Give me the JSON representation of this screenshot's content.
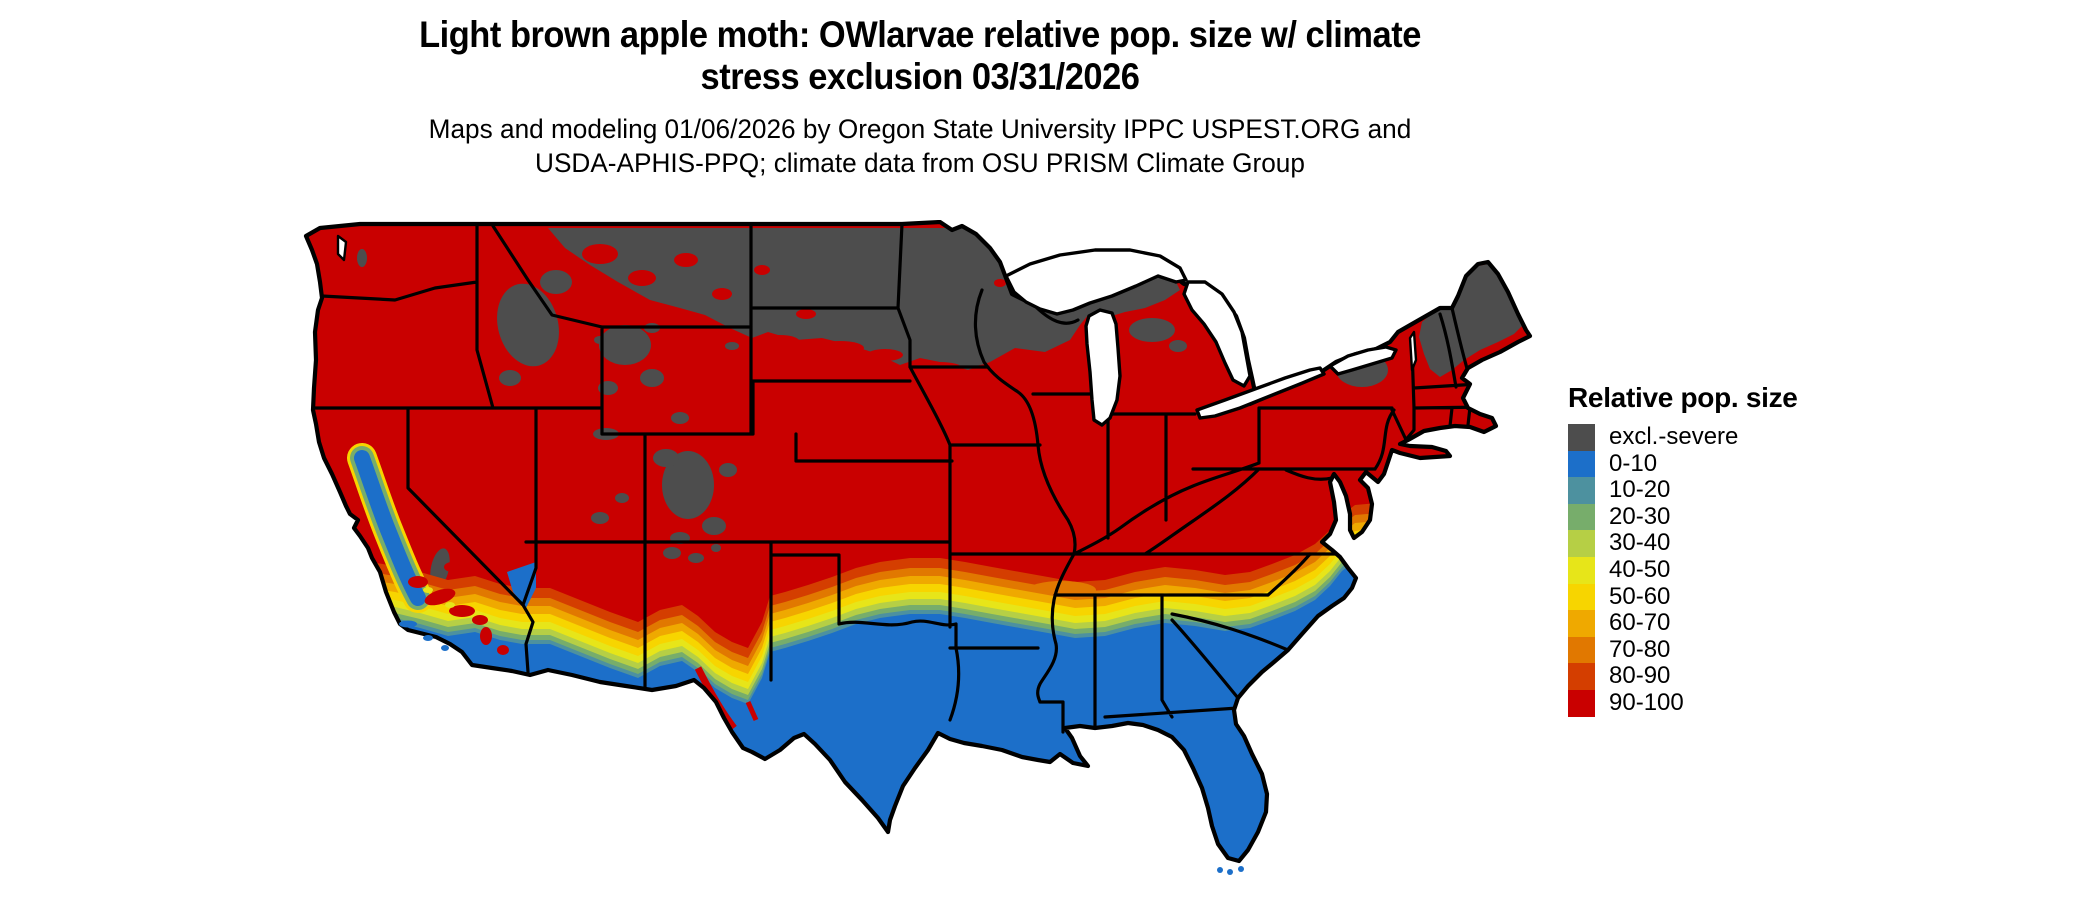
{
  "title": {
    "line1": "Light brown apple moth: OWlarvae relative pop. size w/ climate",
    "line2": "stress exclusion 03/31/2026"
  },
  "subtitle": {
    "line1": "Maps and modeling 01/06/2026 by Oregon State University IPPC USPEST.ORG and",
    "line2": "USDA-APHIS-PPQ; climate data from OSU PRISM Climate Group"
  },
  "legend": {
    "title": "Relative pop. size",
    "items": [
      {
        "label": "excl.-severe",
        "color": "#4d4d4d"
      },
      {
        "label": "0-10",
        "color": "#1c6fc9"
      },
      {
        "label": "10-20",
        "color": "#4d919f"
      },
      {
        "label": "20-30",
        "color": "#77ad6b"
      },
      {
        "label": "30-40",
        "color": "#b6cf45"
      },
      {
        "label": "40-50",
        "color": "#e7e519"
      },
      {
        "label": "50-60",
        "color": "#f7d500"
      },
      {
        "label": "60-70",
        "color": "#efa900"
      },
      {
        "label": "70-80",
        "color": "#e17800"
      },
      {
        "label": "80-90",
        "color": "#d43e00"
      },
      {
        "label": "90-100",
        "color": "#c90000"
      }
    ]
  },
  "map_summary": {
    "type": "categorical raster map of continental United States",
    "border_color": "#000000",
    "water_color": "#ffffff",
    "regions": {
      "excl_severe_gray": "North Dakota, Minnesota, northern South Dakota, northern Wisconsin, upper Michigan, north-central Montana, central Idaho, Yellowstone area, Colorado Rockies, high Utah/New Mexico terrain, southern Sierra Nevada, Adirondacks, interior Maine and northern New Hampshire/Vermont",
      "pop_90_100_red": "Most of the northern and central US: Pacific Northwest, Great Basin, northern California, central/southern plains, Midwest, Ohio Valley, Mid-Atlantic, southern New England, Maine coast",
      "pop_0_10_blue": "Southern tier: central/southern California, southern Nevada tip, southern Arizona and New Mexico, most of Texas, Gulf Coast, Deep South, Florida, coastal Carolinas",
      "transition_band": "Yellow/orange/green gradient band from southern New Mexico across the Texas panhandle, Oklahoma, Arkansas, northern Mississippi/Alabama/Georgia, South Carolina to coastal North Carolina, and around California's Central Valley"
    }
  }
}
